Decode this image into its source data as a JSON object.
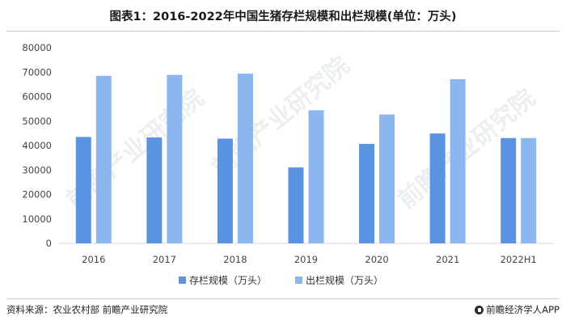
{
  "page": {
    "title": "图表1：2016-2022年中国生猪存栏规模和出栏规模(单位：万头)",
    "source": "资料来源：农业农村部 前瞻产业研究院",
    "brand": "前瞻经济学人APP",
    "watermark": "前瞻产业研究院"
  },
  "colors": {
    "series_1": "#5b93e3",
    "series_2": "#8cb6ee",
    "axis_text": "#444444",
    "grid": "#e6e6e6"
  },
  "chart_data": {
    "type": "bar",
    "title": "图表1：2016-2022年中国生猪存栏规模和出栏规模(单位：万头)",
    "categories": [
      "2016",
      "2017",
      "2018",
      "2019",
      "2020",
      "2021",
      "2022H1"
    ],
    "series": [
      {
        "name": "存栏规模（万头）",
        "values": [
          43504,
          43325,
          42817,
          31041,
          40650,
          44922,
          43057
        ]
      },
      {
        "name": "出栏规模（万头）",
        "values": [
          68502,
          68861,
          69382,
          54419,
          52704,
          67128,
          43057
        ]
      }
    ],
    "ylim": [
      0,
      80000
    ],
    "yticks": [
      0,
      10000,
      20000,
      30000,
      40000,
      50000,
      60000,
      70000,
      80000
    ],
    "grid": false,
    "legend_position": "bottom"
  }
}
